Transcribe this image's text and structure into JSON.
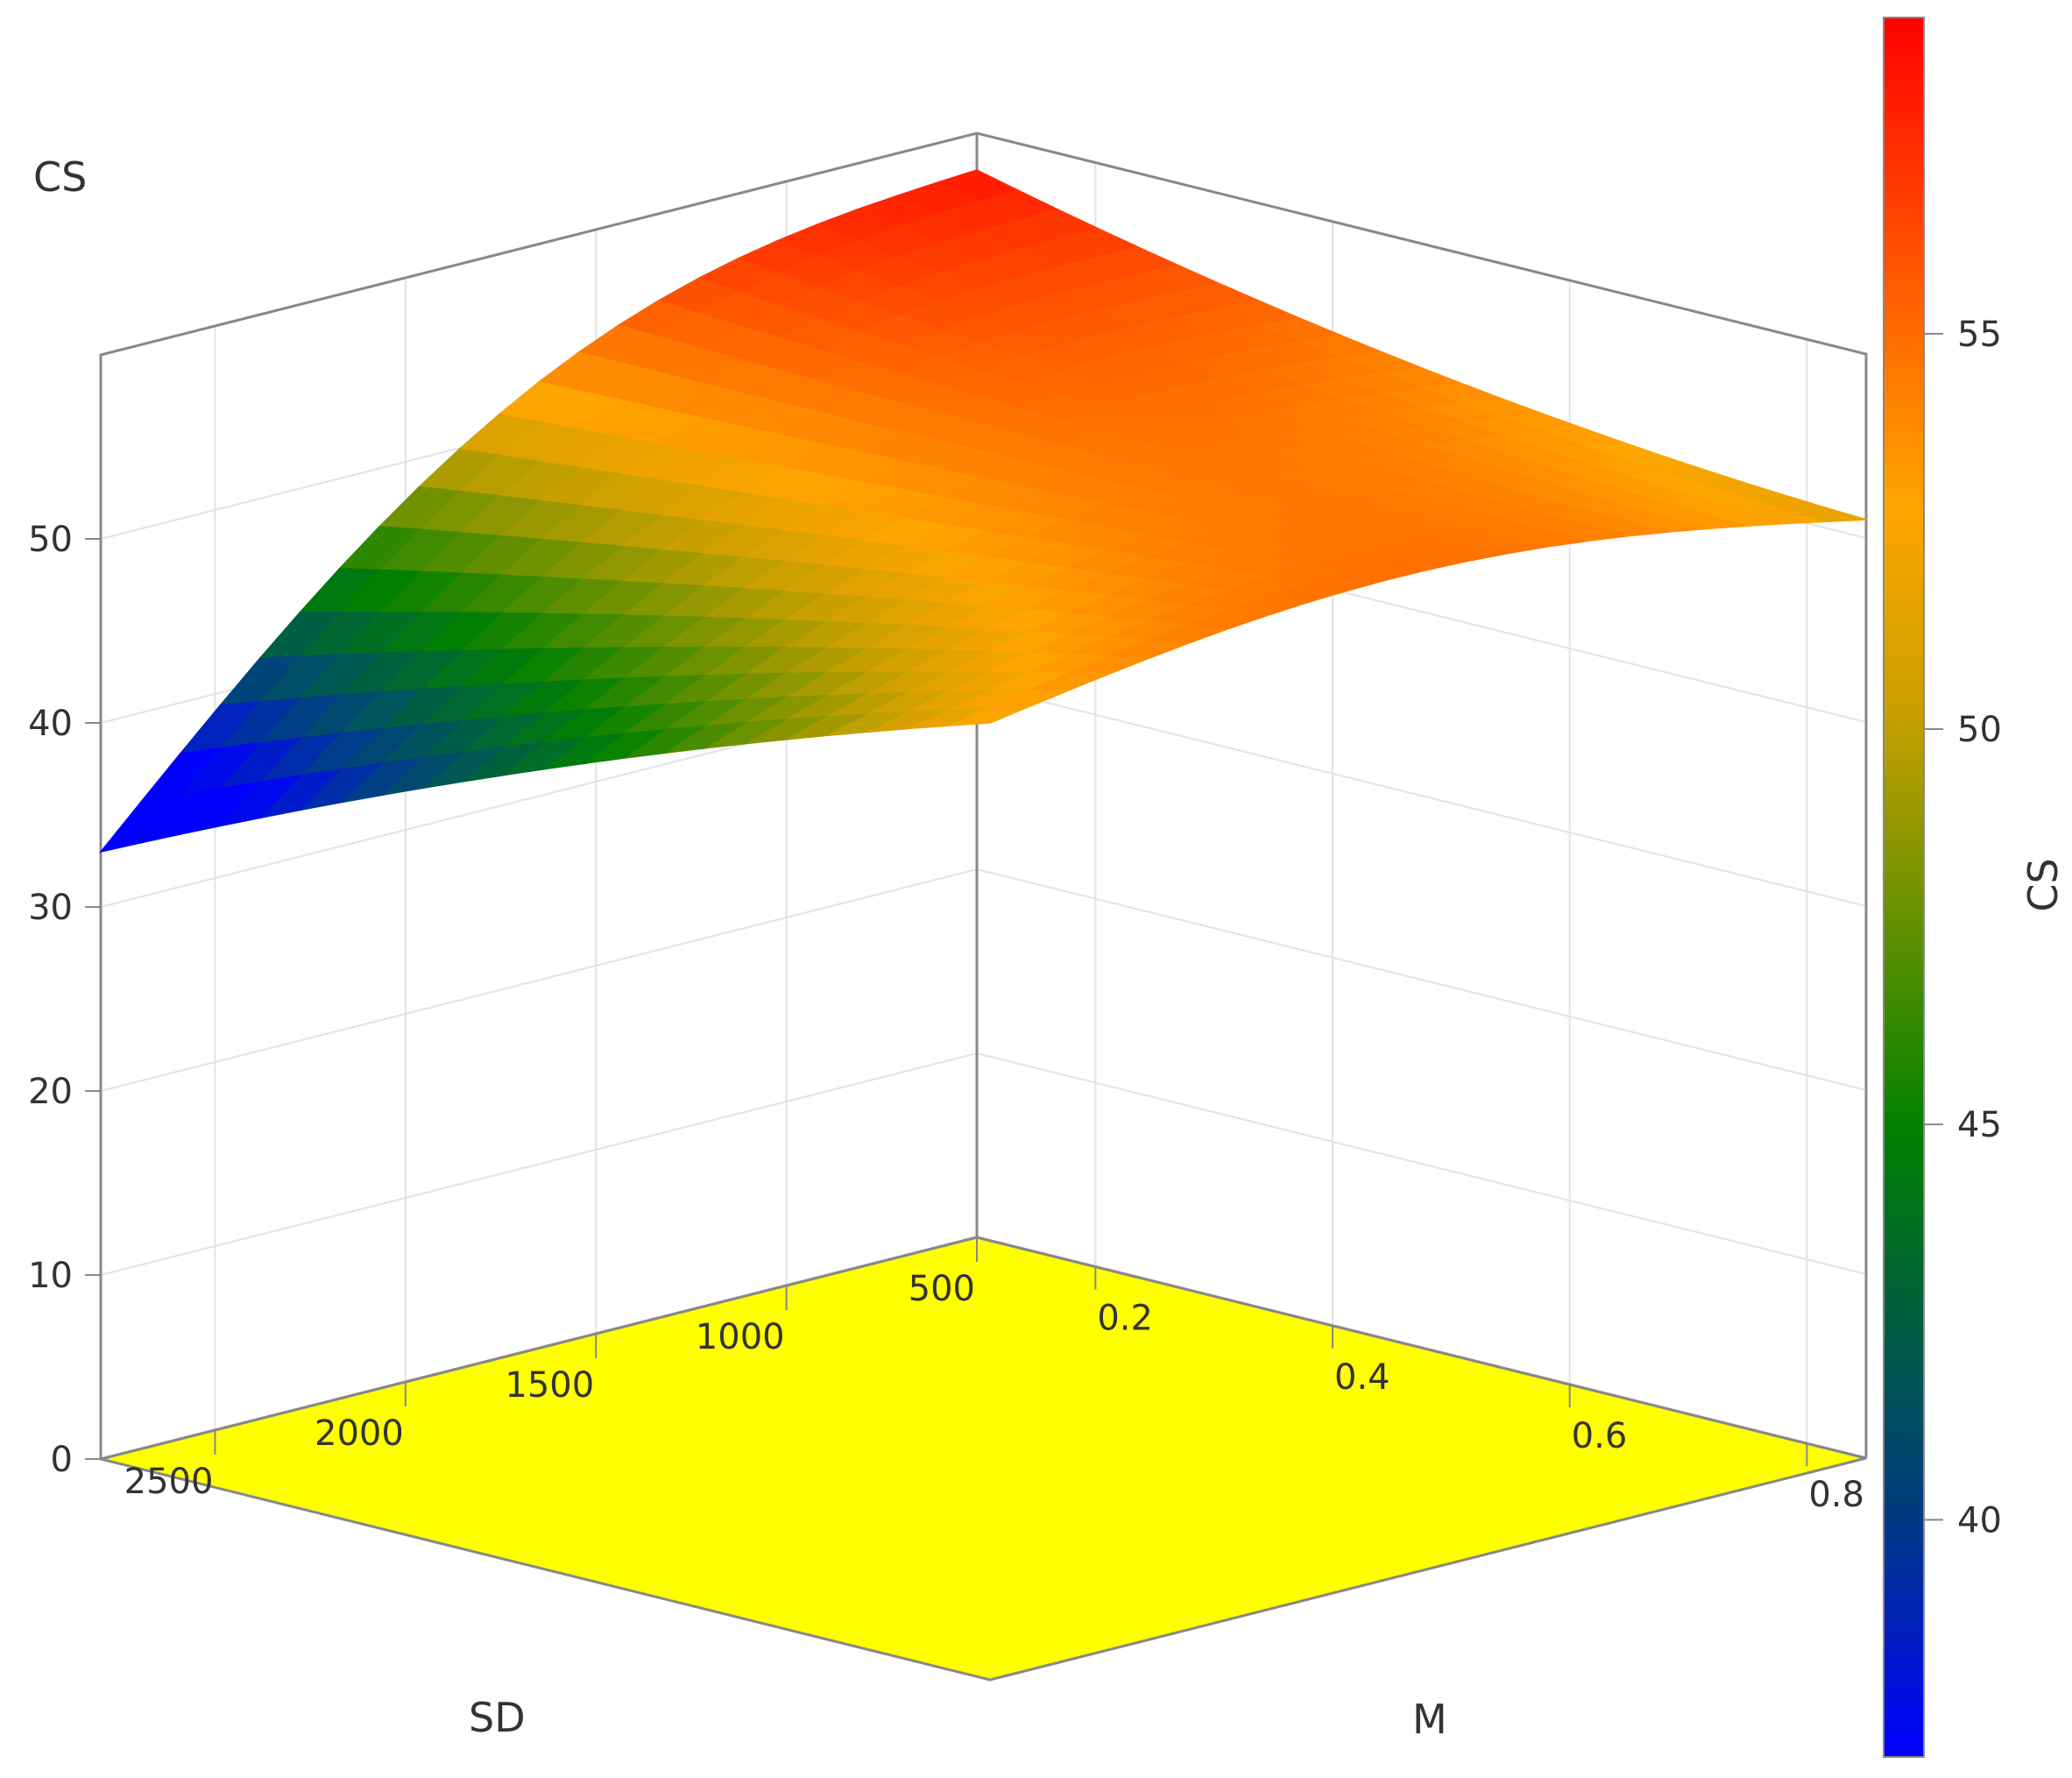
{
  "chart_data": {
    "type": "surface",
    "zlabel": "CS",
    "xlabel": "SD",
    "ylabel": "M",
    "x_ticks": [
      500,
      1000,
      1500,
      2000,
      2500
    ],
    "y_ticks": [
      0.2,
      0.4,
      0.6,
      0.8
    ],
    "z_ticks": [
      0,
      10,
      20,
      30,
      40,
      50
    ],
    "xlim": [
      500,
      2800
    ],
    "ylim": [
      0.1,
      0.85
    ],
    "zlim": [
      0,
      60
    ],
    "grid": true,
    "floor_color": "#ffff00",
    "surface_corners": [
      {
        "SD": 500,
        "M": 0.1,
        "CS": 58
      },
      {
        "SD": 2800,
        "M": 0.1,
        "CS": 33
      },
      {
        "SD": 2800,
        "M": 0.85,
        "CS": 52
      },
      {
        "SD": 500,
        "M": 0.85,
        "CS": 51
      }
    ],
    "surface_samples": [
      {
        "SD": 1000,
        "M": 0.1,
        "CS": 53
      },
      {
        "SD": 1900,
        "M": 0.1,
        "CS": 42
      },
      {
        "SD": 2800,
        "M": 0.5,
        "CS": 46
      },
      {
        "SD": 1800,
        "M": 0.45,
        "CS": 47
      },
      {
        "SD": 1000,
        "M": 0.5,
        "CS": 51
      },
      {
        "SD": 2200,
        "M": 0.75,
        "CS": 53
      }
    ],
    "colorbar": {
      "title": "CS",
      "ticks": [
        40,
        45,
        50,
        55
      ],
      "range": [
        37,
        59
      ],
      "colors": [
        "#0000ff",
        "#008000",
        "#ffa500",
        "#ff0000"
      ]
    }
  }
}
